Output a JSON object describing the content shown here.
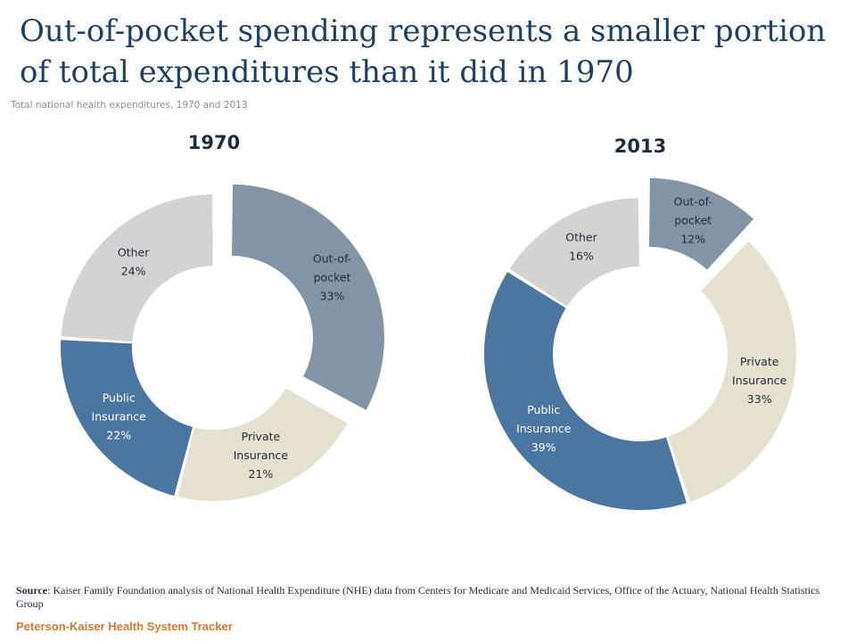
{
  "header": {
    "title": "Out-of-pocket spending represents a smaller portion of total expenditures than it did in 1970",
    "subtitle": "Total national health expenditures, 1970 and 2013"
  },
  "colors": {
    "out_of_pocket": "#8394a5",
    "private_insurance": "#e6e0cf",
    "public_insurance": "#4a76a0",
    "other": "#d3d3d3",
    "label_dark": "#1f2d3d",
    "label_light": "#ffffff"
  },
  "chart_data": [
    {
      "type": "pie",
      "title": "1970",
      "labels": [
        "Out-of-pocket",
        "Private Insurance",
        "Public Insurance",
        "Other"
      ],
      "values": [
        33,
        21,
        22,
        24
      ],
      "unit": "%",
      "donut": true,
      "exploded": "Out-of-pocket",
      "slice_labels": [
        {
          "lines": [
            "Out-of-",
            "pocket",
            "33%"
          ]
        },
        {
          "lines": [
            "Private",
            "Insurance",
            "21%"
          ]
        },
        {
          "lines": [
            "Public",
            "Insurance",
            "22%"
          ]
        },
        {
          "lines": [
            "Other",
            "24%"
          ]
        }
      ]
    },
    {
      "type": "pie",
      "title": "2013",
      "labels": [
        "Out-of-pocket",
        "Private Insurance",
        "Public Insurance",
        "Other"
      ],
      "values": [
        12,
        33,
        39,
        16
      ],
      "unit": "%",
      "donut": true,
      "exploded": "Out-of-pocket",
      "slice_labels": [
        {
          "lines": [
            "Out-of-",
            "pocket",
            "12%"
          ]
        },
        {
          "lines": [
            "Private",
            "Insurance",
            "33%"
          ]
        },
        {
          "lines": [
            "Public",
            "Insurance",
            "39%"
          ]
        },
        {
          "lines": [
            "Other",
            "16%"
          ]
        }
      ]
    }
  ],
  "source": {
    "label": "Source",
    "text": "Kaiser Family Foundation analysis of National Health Expenditure (NHE) data from Centers for Medicare and Medicaid Services, Office of the Actuary, National Health Statistics Group"
  },
  "footer": {
    "brand": "Peterson-Kaiser Health System Tracker"
  }
}
